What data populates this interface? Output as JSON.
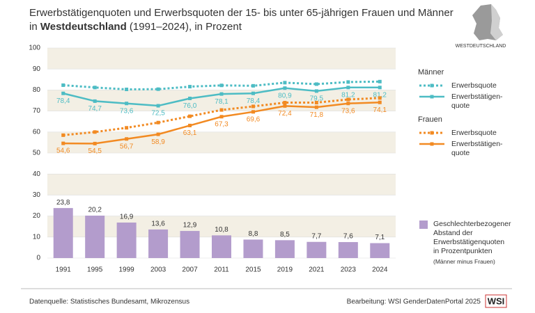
{
  "chart_data": {
    "type": "combo",
    "title": {
      "line1": "Erwerbstätigenquoten und Erwerbsquoten der 15- bis unter 65-jährigen Frauen und Männer",
      "line2": [
        "in ",
        "Westdeutschland",
        " (1991–2024), in Prozent"
      ]
    },
    "categories": [
      "1991",
      "1995",
      "1999",
      "2003",
      "2007",
      "2011",
      "2015",
      "2019",
      "2021",
      "2023",
      "2024"
    ],
    "ylim": [
      0,
      100
    ],
    "yticks": [
      0,
      10,
      20,
      30,
      40,
      50,
      60,
      70,
      80,
      90,
      100
    ],
    "legend_headings": [
      "Männer",
      "Frauen"
    ],
    "series": [
      {
        "name": "Erwerbsquote",
        "type": "line",
        "style": "dotted",
        "color": "#4dbcc4",
        "values": [
          82.3,
          81.2,
          80.3,
          80.4,
          81.6,
          82.2,
          82.0,
          83.5,
          82.8,
          83.8,
          84.0
        ]
      },
      {
        "name": "Erwerbstätigen-\nquote",
        "type": "line",
        "style": "solid",
        "color": "#4dbcc4",
        "values": [
          78.4,
          74.7,
          73.6,
          72.5,
          76.0,
          78.1,
          78.4,
          80.9,
          79.5,
          81.2,
          81.2
        ],
        "value_labels": [
          "78,4",
          "74,7",
          "73,6",
          "72,5",
          "76,0",
          "78,1",
          "78,4",
          "80,9",
          "79,5",
          "81,2",
          "81,2"
        ]
      },
      {
        "name": "Erwerbsquote",
        "type": "line",
        "style": "dotted",
        "color": "#f28a22",
        "values": [
          58.5,
          60.0,
          62.0,
          64.5,
          67.5,
          70.5,
          72.2,
          74.0,
          74.0,
          75.5,
          76.2
        ]
      },
      {
        "name": "Erwerbstätigen-\nquote",
        "type": "line",
        "style": "solid",
        "color": "#f28a22",
        "values": [
          54.6,
          54.5,
          56.7,
          58.9,
          63.1,
          67.3,
          69.6,
          72.4,
          71.8,
          73.6,
          74.1
        ],
        "value_labels": [
          "54,6",
          "54,5",
          "56,7",
          "58,9",
          "63,1",
          "67,3",
          "69,6",
          "72,4",
          "71,8",
          "73,6",
          "74,1"
        ]
      },
      {
        "name": "Geschlechterbezogener\nAbstand der\nErwerbstätigenquoten\nin Prozentpunkten",
        "note": "(Männer minus Frauen)",
        "type": "bar",
        "color": "#b39ccc",
        "values": [
          23.8,
          20.2,
          16.9,
          13.6,
          12.9,
          10.8,
          8.8,
          8.5,
          7.7,
          7.6,
          7.1
        ],
        "value_labels": [
          "23,8",
          "20,2",
          "16,9",
          "13,6",
          "12,9",
          "10,8",
          "8,8",
          "8,5",
          "7,7",
          "7,6",
          "7,1"
        ]
      }
    ],
    "map_label": "WESTDEUTSCHLAND",
    "source": "Datenquelle: Statistisches Bundesamt, Mikrozensus",
    "credit": "Bearbeitung: WSI GenderDatenPortal 2025",
    "logo": "WSI"
  }
}
